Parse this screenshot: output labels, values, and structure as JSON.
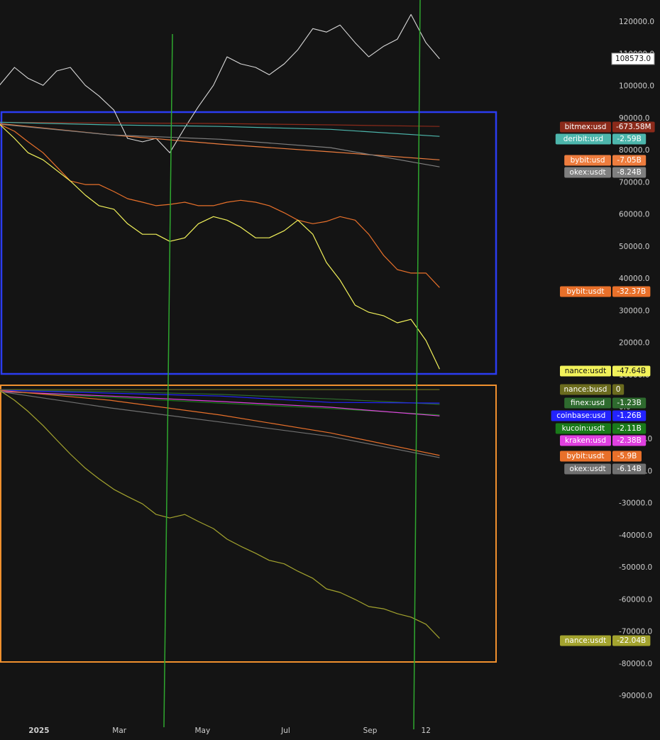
{
  "chart_data": {
    "type": "line",
    "background": "#141414",
    "xlim": [
      -28.6,
      419.3
    ],
    "xticks": [
      {
        "value": 0,
        "label": "2025"
      },
      {
        "value": 59,
        "label": "Mar"
      },
      {
        "value": 120,
        "label": "May"
      },
      {
        "value": 181,
        "label": "Jul"
      },
      {
        "value": 243,
        "label": "Sep"
      },
      {
        "value": 284,
        "label": "12"
      }
    ],
    "ylim": [
      -98600,
      126900
    ],
    "yticks": [
      {
        "value": 120000,
        "label": "120000.0"
      },
      {
        "value": 110000,
        "label": "110000.0"
      },
      {
        "value": 100000,
        "label": "100000.0"
      },
      {
        "value": 90000,
        "label": "90000.0"
      },
      {
        "value": 80000,
        "label": "80000.0"
      },
      {
        "value": 70000,
        "label": "70000.0"
      },
      {
        "value": 60000,
        "label": "60000.0"
      },
      {
        "value": 50000,
        "label": "50000.0"
      },
      {
        "value": 40000,
        "label": "40000.0"
      },
      {
        "value": 30000,
        "label": "30000.0"
      },
      {
        "value": 20000,
        "label": "20000.0"
      },
      {
        "value": 10000,
        "label": "10000.0"
      },
      {
        "value": 0,
        "label": "0.0"
      },
      {
        "value": -10000,
        "label": "-10000.0"
      },
      {
        "value": -20000,
        "label": "-20000.0"
      },
      {
        "value": -30000,
        "label": "-30000.0"
      },
      {
        "value": -40000,
        "label": "-40000.0"
      },
      {
        "value": -50000,
        "label": "-50000.0"
      },
      {
        "value": -60000,
        "label": "-60000.0"
      },
      {
        "value": -70000,
        "label": "-70000.0"
      },
      {
        "value": -80000,
        "label": "-80000.0"
      },
      {
        "value": -90000,
        "label": "-90000.0"
      }
    ],
    "price_label": {
      "value": 108573,
      "label": "108573.0"
    },
    "series": [
      {
        "color": "#d9d9d9",
        "x": [
          -29,
          -18,
          -8,
          3,
          13,
          23,
          34,
          44,
          55,
          65,
          76,
          86,
          96,
          107,
          117,
          128,
          138,
          148,
          159,
          169,
          180,
          190,
          201,
          211,
          221,
          232,
          242,
          253,
          263,
          273,
          284,
          294
        ],
        "values": [
          100300,
          105900,
          102500,
          100300,
          104800,
          105900,
          100300,
          97000,
          92600,
          83800,
          82700,
          83800,
          79300,
          87100,
          93700,
          100300,
          109200,
          107000,
          105900,
          103600,
          107000,
          111400,
          118000,
          116900,
          119100,
          113600,
          109200,
          112500,
          114700,
          122400,
          113600,
          108573
        ]
      },
      {
        "name": "bitmex:usd",
        "readout": "-673.58M",
        "color": "#8b2a1a",
        "x": [
          -29,
          52,
          133,
          214,
          294
        ],
        "values": [
          88800,
          88600,
          88400,
          88000,
          87500
        ]
      },
      {
        "name": "deribit:usd",
        "readout": "-2.59B",
        "color": "#4db6ac",
        "x": [
          -29,
          52,
          133,
          214,
          294
        ],
        "values": [
          88800,
          88000,
          87500,
          86600,
          84400
        ]
      },
      {
        "name": "bybit:usd",
        "readout": "-7.05B",
        "color": "#ee7d3e",
        "x": [
          -29,
          52,
          133,
          214,
          294
        ],
        "values": [
          88400,
          84900,
          82000,
          79600,
          77100
        ]
      },
      {
        "name": "okex:usdt",
        "readout": "-8.24B",
        "color": "#7f7f7f",
        "x": [
          -29,
          52,
          133,
          214,
          294
        ],
        "values": [
          88200,
          84900,
          83500,
          80900,
          74900
        ]
      },
      {
        "name": "bybit:usdt",
        "readout": "-32.37B",
        "color": "#e8702a",
        "x": [
          -29,
          -18,
          -8,
          3,
          13,
          23,
          34,
          44,
          55,
          65,
          76,
          86,
          96,
          107,
          117,
          128,
          138,
          148,
          159,
          169,
          180,
          190,
          201,
          211,
          221,
          232,
          242,
          253,
          263,
          273,
          284,
          294
        ],
        "values": [
          88200,
          86000,
          82700,
          79300,
          74900,
          70500,
          69400,
          69400,
          67200,
          65000,
          63900,
          62800,
          63200,
          63900,
          62800,
          62800,
          63900,
          64500,
          63900,
          62800,
          60600,
          58300,
          57200,
          57900,
          59400,
          58300,
          53900,
          47300,
          42900,
          41800,
          41800,
          37300
        ]
      },
      {
        "name": "nance:usdt",
        "readout": "-47.64B",
        "color": "#f2f25a",
        "x": [
          -29,
          -18,
          -8,
          3,
          13,
          23,
          34,
          44,
          55,
          65,
          76,
          86,
          96,
          107,
          117,
          128,
          138,
          148,
          159,
          169,
          180,
          190,
          201,
          211,
          221,
          232,
          242,
          253,
          263,
          273,
          284,
          294
        ],
        "values": [
          88200,
          83800,
          79300,
          77100,
          73800,
          70500,
          66100,
          62800,
          61700,
          57200,
          53900,
          53900,
          51700,
          52800,
          57200,
          59400,
          58300,
          56100,
          52800,
          52800,
          55000,
          58300,
          53900,
          45100,
          39600,
          31800,
          29600,
          28500,
          26300,
          27400,
          20800,
          11900
        ]
      },
      {
        "name": "nance:busd",
        "readout": "0",
        "color": "#6b6b1e",
        "x": [
          -29,
          52,
          133,
          214,
          294
        ],
        "values": [
          5500,
          5500,
          5500,
          5500,
          5500
        ]
      },
      {
        "name": "finex:usd",
        "readout": "-1.23B",
        "color": "#2e6b2e",
        "x": [
          -29,
          52,
          133,
          214,
          294
        ],
        "values": [
          5300,
          4900,
          4000,
          2600,
          900
        ]
      },
      {
        "name": "coinbase:usd",
        "readout": "-1.26B",
        "color": "#2323ff",
        "x": [
          -29,
          52,
          133,
          214,
          294
        ],
        "values": [
          5300,
          4400,
          3500,
          1500,
          1300
        ]
      },
      {
        "name": "kucoin:usdt",
        "readout": "-2.11B",
        "color": "#1a7a1a",
        "x": [
          -29,
          52,
          133,
          214,
          294
        ],
        "values": [
          4900,
          3100,
          1300,
          -400,
          -2400
        ]
      },
      {
        "name": "kraken:usd",
        "readout": "-2.38B",
        "color": "#e040e0",
        "x": [
          -29,
          52,
          133,
          214,
          294
        ],
        "values": [
          4900,
          3500,
          1800,
          0,
          -2700
        ]
      },
      {
        "name": "bybit:usdt",
        "readout": "-5.9B",
        "color": "#e8702a",
        "x": [
          -29,
          52,
          133,
          214,
          294
        ],
        "values": [
          5300,
          2200,
          -2400,
          -8000,
          -15000
        ]
      },
      {
        "name": "okex:usdt",
        "readout": "-6.14B",
        "color": "#707070",
        "x": [
          -29,
          52,
          133,
          214,
          294
        ],
        "values": [
          4900,
          -200,
          -4600,
          -9100,
          -15700
        ]
      },
      {
        "name": "nance:usdt",
        "readout": "-22.04B",
        "color": "#a3a32e",
        "x": [
          -29,
          -18,
          -8,
          3,
          13,
          23,
          34,
          44,
          55,
          65,
          76,
          86,
          96,
          107,
          117,
          128,
          138,
          148,
          159,
          169,
          180,
          190,
          201,
          211,
          221,
          232,
          242,
          253,
          263,
          273,
          284,
          294
        ],
        "values": [
          5300,
          2200,
          -1300,
          -5700,
          -10200,
          -14600,
          -19000,
          -22300,
          -25600,
          -27800,
          -30100,
          -33400,
          -34500,
          -33400,
          -35600,
          -37800,
          -41100,
          -43300,
          -45500,
          -47700,
          -48800,
          -51100,
          -53300,
          -56600,
          -57700,
          -59900,
          -62100,
          -62800,
          -64300,
          -65400,
          -67600,
          -72000
        ]
      }
    ]
  }
}
